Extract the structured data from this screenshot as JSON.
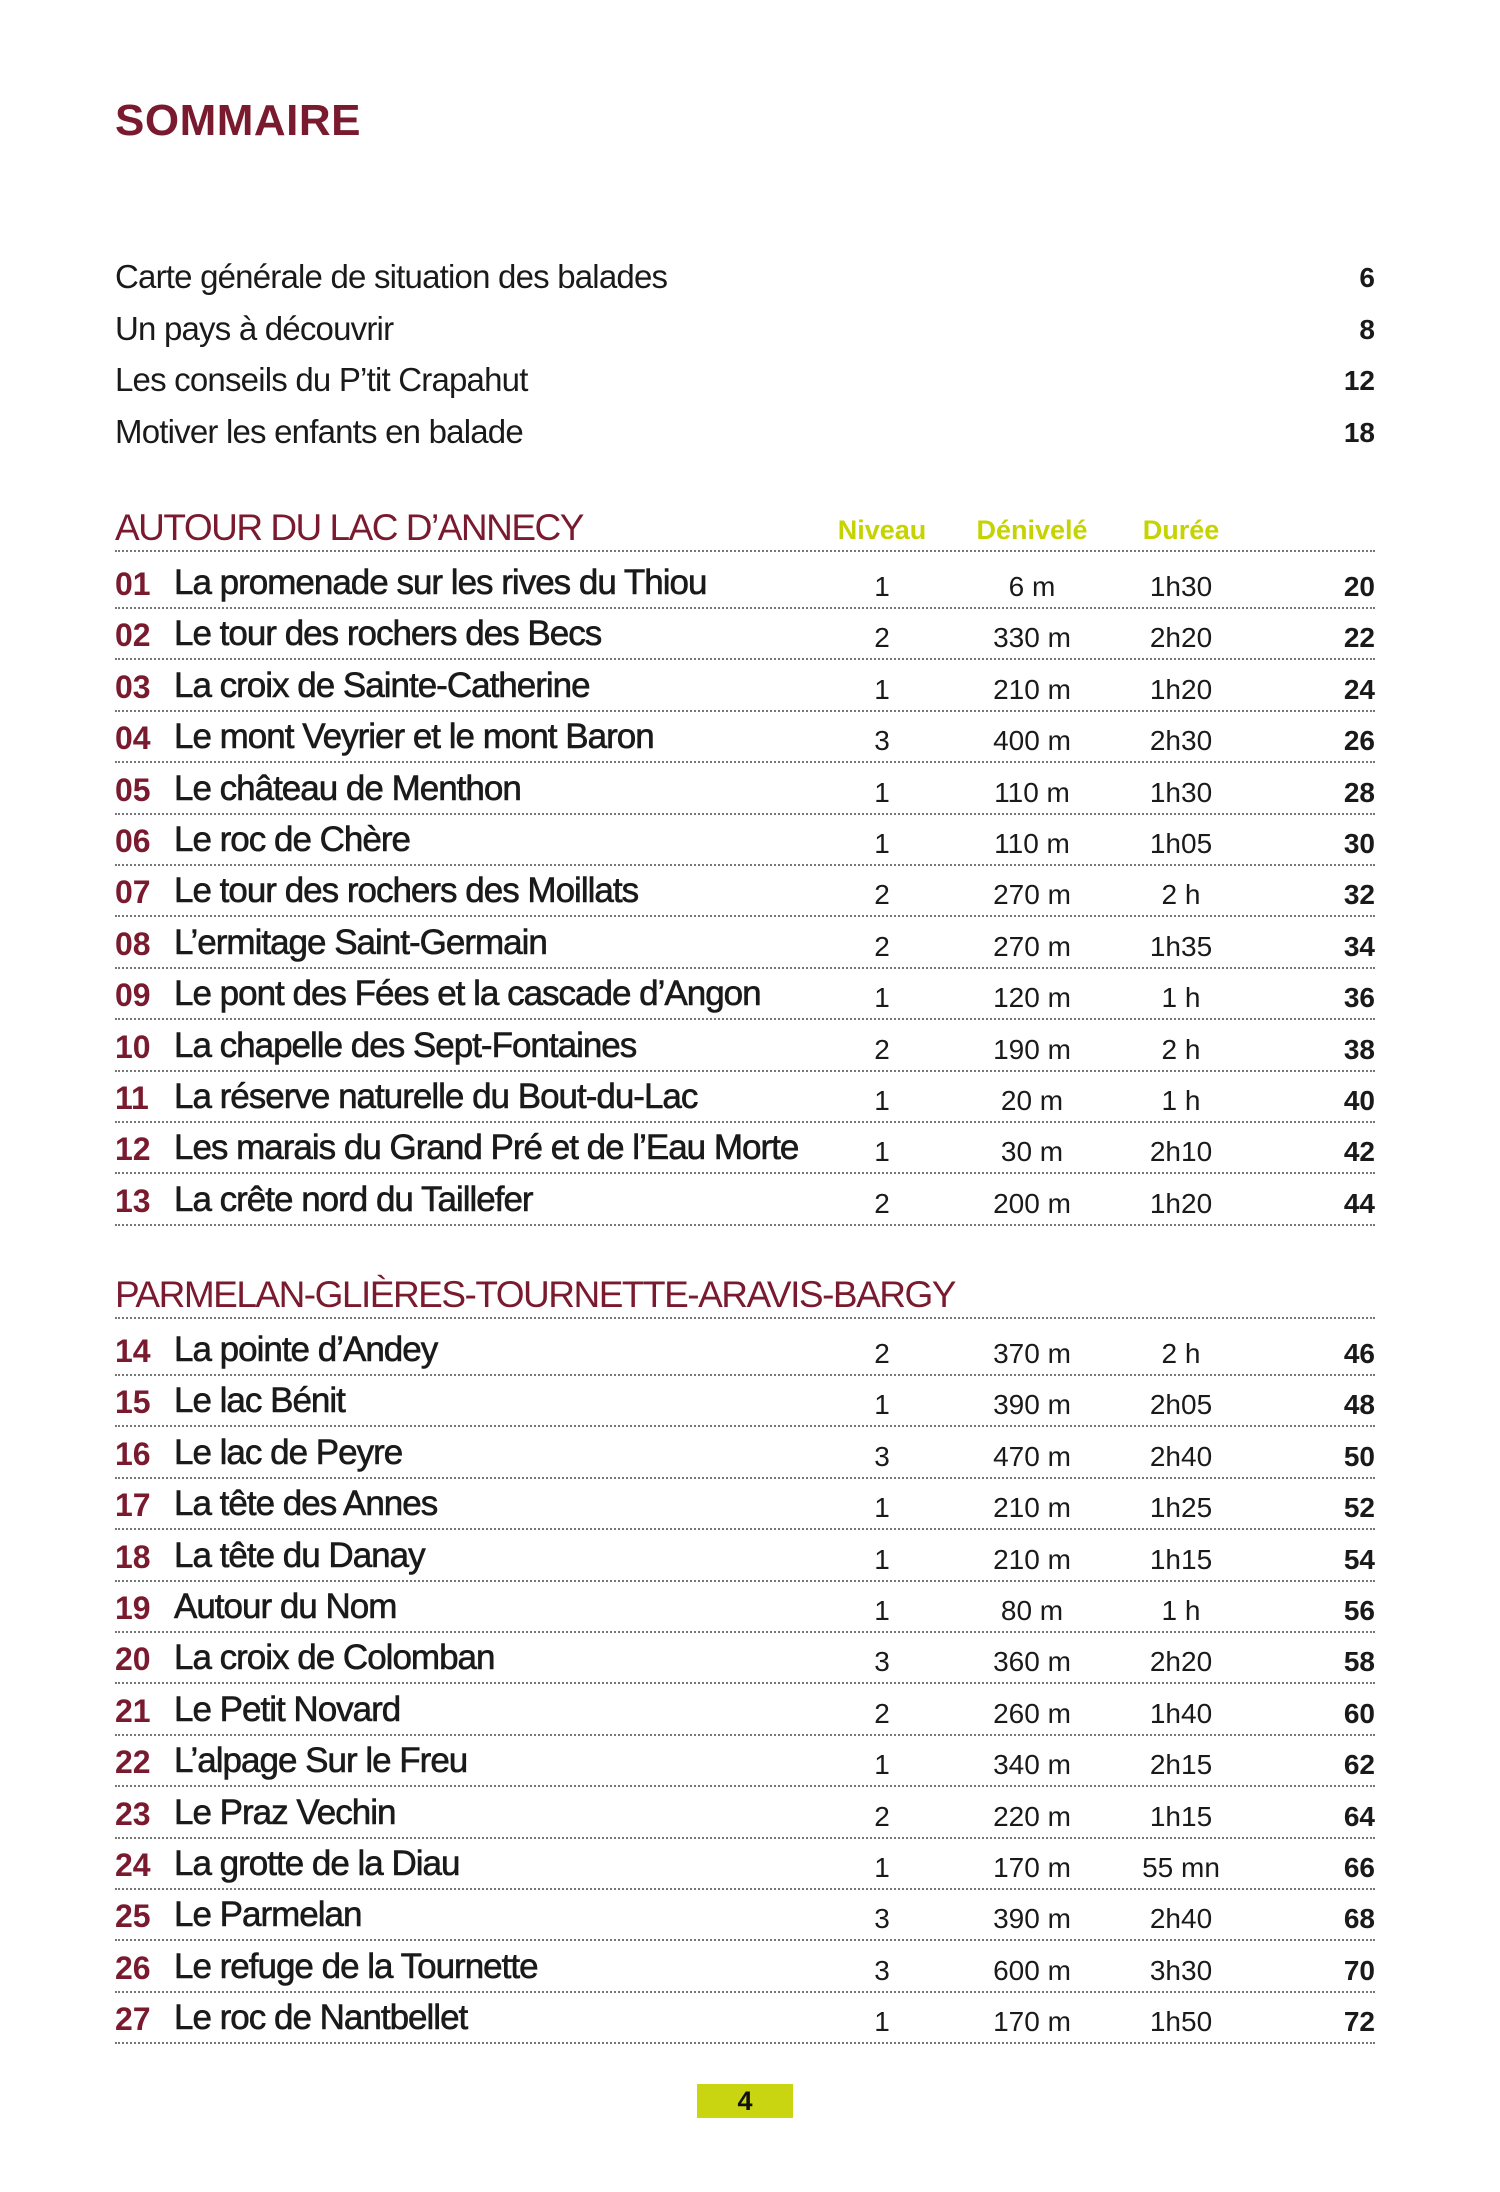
{
  "title": "SOMMAIRE",
  "intro": [
    {
      "label": "Carte générale de situation des balades",
      "page": "6"
    },
    {
      "label": "Un pays à découvrir",
      "page": "8"
    },
    {
      "label": "Les conseils du P’tit Crapahut",
      "page": "12"
    },
    {
      "label": "Motiver les enfants en balade",
      "page": "18"
    }
  ],
  "columns": {
    "niveau": "Niveau",
    "denivele": "Dénivelé",
    "duree": "Durée"
  },
  "sections": [
    {
      "name": "AUTOUR DU LAC D’ANNECY",
      "show_headers": true,
      "rows": [
        [
          "01",
          "La promenade sur les rives du Thiou",
          "1",
          "6 m",
          "1h30",
          "20"
        ],
        [
          "02",
          "Le tour des rochers des Becs",
          "2",
          "330 m",
          "2h20",
          "22"
        ],
        [
          "03",
          "La croix de Sainte-Catherine",
          "1",
          "210 m",
          "1h20",
          "24"
        ],
        [
          "04",
          "Le mont Veyrier et le mont Baron",
          "3",
          "400 m",
          "2h30",
          "26"
        ],
        [
          "05",
          "Le château de Menthon",
          "1",
          "110 m",
          "1h30",
          "28"
        ],
        [
          "06",
          "Le roc de Chère",
          "1",
          "110 m",
          "1h05",
          "30"
        ],
        [
          "07",
          "Le tour des rochers des Moillats",
          "2",
          "270 m",
          "2 h",
          "32"
        ],
        [
          "08",
          "L’ermitage Saint-Germain",
          "2",
          "270 m",
          "1h35",
          "34"
        ],
        [
          "09",
          "Le pont des Fées et la cascade d’Angon",
          "1",
          "120 m",
          "1 h",
          "36"
        ],
        [
          "10",
          "La chapelle des Sept-Fontaines",
          "2",
          "190 m",
          "2 h",
          "38"
        ],
        [
          "11",
          "La réserve naturelle du Bout-du-Lac",
          "1",
          "20 m",
          "1 h",
          "40"
        ],
        [
          "12",
          "Les marais du Grand Pré et de l’Eau Morte",
          "1",
          "30 m",
          "2h10",
          "42"
        ],
        [
          "13",
          "La crête nord du Taillefer",
          "2",
          "200 m",
          "1h20",
          "44"
        ]
      ]
    },
    {
      "name": "PARMELAN-GLIÈRES-TOURNETTE-ARAVIS-BARGY",
      "show_headers": false,
      "rows": [
        [
          "14",
          "La pointe d’Andey",
          "2",
          "370 m",
          "2 h",
          "46"
        ],
        [
          "15",
          "Le lac Bénit",
          "1",
          "390 m",
          "2h05",
          "48"
        ],
        [
          "16",
          "Le lac de Peyre",
          "3",
          "470 m",
          "2h40",
          "50"
        ],
        [
          "17",
          "La tête des Annes",
          "1",
          "210 m",
          "1h25",
          "52"
        ],
        [
          "18",
          "La tête du Danay",
          "1",
          "210 m",
          "1h15",
          "54"
        ],
        [
          "19",
          "Autour du Nom",
          "1",
          "80 m",
          "1 h",
          "56"
        ],
        [
          "20",
          "La croix de Colomban",
          "3",
          "360 m",
          "2h20",
          "58"
        ],
        [
          "21",
          "Le Petit Novard",
          "2",
          "260 m",
          "1h40",
          "60"
        ],
        [
          "22",
          "L’alpage Sur le Freu",
          "1",
          "340 m",
          "2h15",
          "62"
        ],
        [
          "23",
          "Le Praz Vechin",
          "2",
          "220 m",
          "1h15",
          "64"
        ],
        [
          "24",
          "La grotte de la Diau",
          "1",
          "170 m",
          "55 mn",
          "66"
        ],
        [
          "25",
          "Le Parmelan",
          "3",
          "390 m",
          "2h40",
          "68"
        ],
        [
          "26",
          "Le refuge de la Tournette",
          "3",
          "600 m",
          "3h30",
          "70"
        ],
        [
          "27",
          "Le roc de Nantbellet",
          "1",
          "170 m",
          "1h50",
          "72"
        ]
      ]
    }
  ],
  "page_number": "4",
  "colors": {
    "accent": "#7a1a2e",
    "highlight": "#c5d300"
  }
}
